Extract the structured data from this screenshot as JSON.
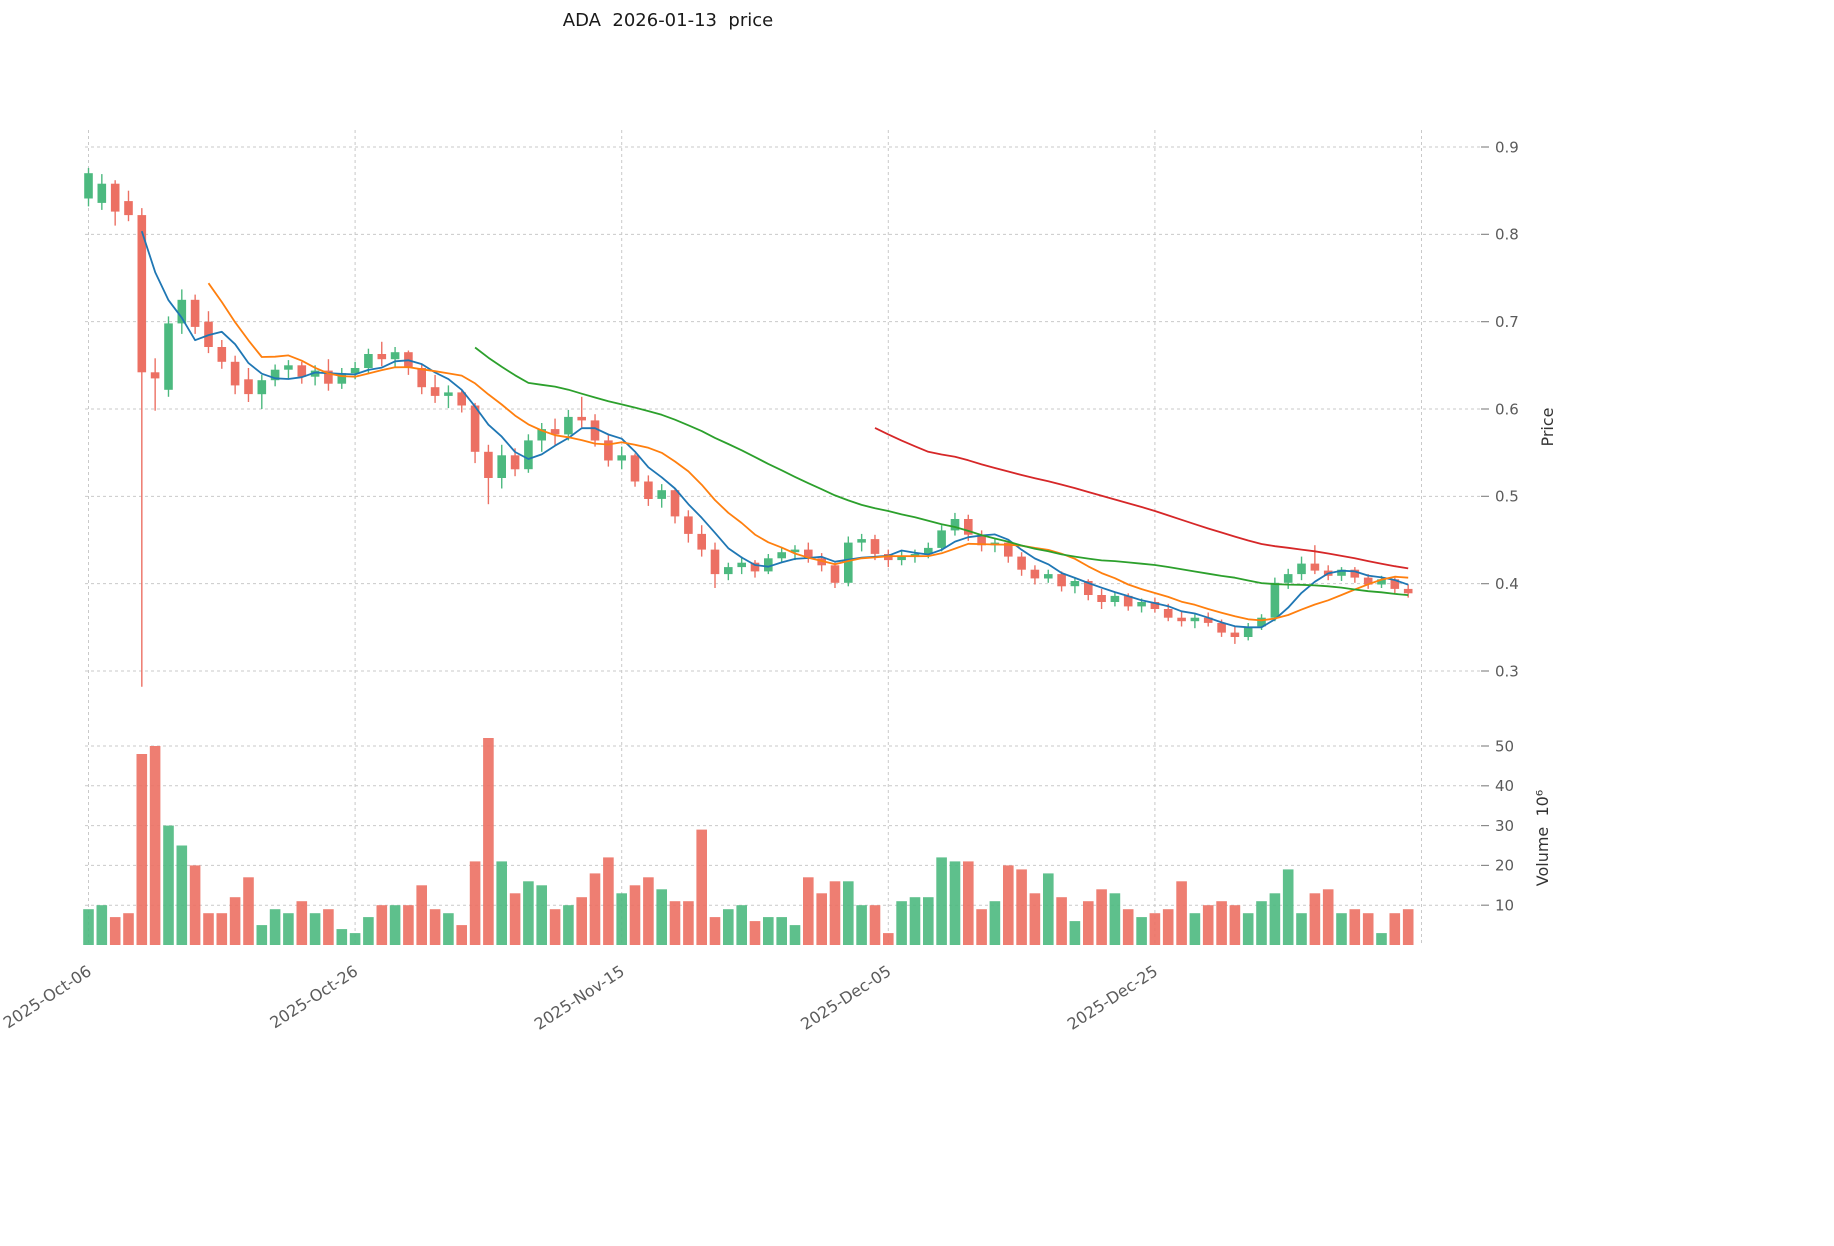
{
  "chart_data": {
    "type": "candlestick",
    "title": "ADA  2026-01-13  price",
    "ylabel_price": "Price",
    "ylabel_volume": "Volume  10⁶",
    "price_ticks": [
      0.3,
      0.4,
      0.5,
      0.6,
      0.7,
      0.8,
      0.9
    ],
    "volume_ticks": [
      10,
      20,
      30,
      40,
      50
    ],
    "price_axis_range": [
      0.26,
      0.93
    ],
    "volume_axis_range": [
      0,
      50
    ],
    "grid": "dashed",
    "legend_position": "none",
    "x_ticks": [
      {
        "i": 0,
        "label": "2025-Oct-06"
      },
      {
        "i": 20,
        "label": "2025-Oct-26"
      },
      {
        "i": 40,
        "label": "2025-Nov-15"
      },
      {
        "i": 60,
        "label": "2025-Dec-05"
      },
      {
        "i": 80,
        "label": "2025-Dec-25"
      },
      {
        "i": 100,
        "label": ""
      }
    ],
    "moving_averages": [
      {
        "name": "MA5",
        "window": 5,
        "color": "#1f77b4"
      },
      {
        "name": "MA10",
        "window": 10,
        "color": "#ff7f0e"
      },
      {
        "name": "MA30",
        "window": 30,
        "color": "#2ca02c"
      },
      {
        "name": "MA60",
        "window": 60,
        "color": "#d62728"
      }
    ],
    "colors": {
      "up": "#4cb97f",
      "down": "#ec7063",
      "grid": "#c9c9c9",
      "text": "#5b5b5b"
    },
    "volume_unit": 1000000,
    "candles_format": [
      "date",
      "open",
      "high",
      "low",
      "close",
      "volume_millions"
    ],
    "candles": [
      [
        "2025-10-06",
        0.841,
        0.876,
        0.832,
        0.87,
        9
      ],
      [
        "2025-10-07",
        0.836,
        0.869,
        0.828,
        0.858,
        10
      ],
      [
        "2025-10-08",
        0.858,
        0.862,
        0.81,
        0.826,
        7
      ],
      [
        "2025-10-09",
        0.838,
        0.85,
        0.815,
        0.822,
        8
      ],
      [
        "2025-10-10",
        0.822,
        0.83,
        0.282,
        0.642,
        48
      ],
      [
        "2025-10-11",
        0.642,
        0.658,
        0.598,
        0.635,
        50
      ],
      [
        "2025-10-12",
        0.622,
        0.706,
        0.614,
        0.698,
        30
      ],
      [
        "2025-10-13",
        0.698,
        0.737,
        0.686,
        0.725,
        25
      ],
      [
        "2025-10-14",
        0.725,
        0.731,
        0.686,
        0.694,
        20
      ],
      [
        "2025-10-15",
        0.7,
        0.712,
        0.664,
        0.671,
        8
      ],
      [
        "2025-10-16",
        0.671,
        0.679,
        0.646,
        0.654,
        8
      ],
      [
        "2025-10-17",
        0.654,
        0.661,
        0.617,
        0.627,
        12
      ],
      [
        "2025-10-18",
        0.634,
        0.647,
        0.608,
        0.617,
        17
      ],
      [
        "2025-10-19",
        0.617,
        0.639,
        0.6,
        0.633,
        5
      ],
      [
        "2025-10-20",
        0.633,
        0.651,
        0.626,
        0.645,
        9
      ],
      [
        "2025-10-21",
        0.645,
        0.656,
        0.635,
        0.65,
        8
      ],
      [
        "2025-10-22",
        0.65,
        0.654,
        0.629,
        0.637,
        11
      ],
      [
        "2025-10-23",
        0.637,
        0.65,
        0.627,
        0.644,
        8
      ],
      [
        "2025-10-24",
        0.644,
        0.657,
        0.621,
        0.629,
        9
      ],
      [
        "2025-10-25",
        0.629,
        0.647,
        0.623,
        0.641,
        4
      ],
      [
        "2025-10-26",
        0.641,
        0.654,
        0.634,
        0.647,
        3
      ],
      [
        "2025-10-27",
        0.647,
        0.669,
        0.641,
        0.663,
        7
      ],
      [
        "2025-10-28",
        0.663,
        0.677,
        0.649,
        0.657,
        10
      ],
      [
        "2025-10-29",
        0.657,
        0.671,
        0.647,
        0.665,
        10
      ],
      [
        "2025-10-30",
        0.665,
        0.667,
        0.639,
        0.647,
        10
      ],
      [
        "2025-10-31",
        0.647,
        0.651,
        0.617,
        0.625,
        15
      ],
      [
        "2025-11-01",
        0.625,
        0.639,
        0.607,
        0.615,
        9
      ],
      [
        "2025-11-02",
        0.615,
        0.627,
        0.601,
        0.619,
        8
      ],
      [
        "2025-11-03",
        0.619,
        0.621,
        0.596,
        0.604,
        5
      ],
      [
        "2025-11-04",
        0.604,
        0.607,
        0.538,
        0.551,
        21
      ],
      [
        "2025-11-05",
        0.551,
        0.559,
        0.491,
        0.521,
        52
      ],
      [
        "2025-11-06",
        0.521,
        0.559,
        0.509,
        0.547,
        21
      ],
      [
        "2025-11-07",
        0.547,
        0.555,
        0.523,
        0.531,
        13
      ],
      [
        "2025-11-08",
        0.531,
        0.571,
        0.527,
        0.564,
        16
      ],
      [
        "2025-11-09",
        0.564,
        0.584,
        0.551,
        0.577,
        15
      ],
      [
        "2025-11-10",
        0.577,
        0.589,
        0.559,
        0.571,
        9
      ],
      [
        "2025-11-11",
        0.571,
        0.599,
        0.564,
        0.591,
        10
      ],
      [
        "2025-11-12",
        0.591,
        0.614,
        0.579,
        0.587,
        12
      ],
      [
        "2025-11-13",
        0.587,
        0.594,
        0.557,
        0.564,
        18
      ],
      [
        "2025-11-14",
        0.564,
        0.571,
        0.534,
        0.541,
        22
      ],
      [
        "2025-11-15",
        0.541,
        0.557,
        0.531,
        0.547,
        13
      ],
      [
        "2025-11-16",
        0.547,
        0.549,
        0.511,
        0.517,
        15
      ],
      [
        "2025-11-17",
        0.517,
        0.524,
        0.489,
        0.497,
        17
      ],
      [
        "2025-11-18",
        0.497,
        0.514,
        0.487,
        0.507,
        14
      ],
      [
        "2025-11-19",
        0.507,
        0.509,
        0.469,
        0.477,
        11
      ],
      [
        "2025-11-20",
        0.477,
        0.484,
        0.447,
        0.457,
        11
      ],
      [
        "2025-11-21",
        0.457,
        0.467,
        0.431,
        0.439,
        29
      ],
      [
        "2025-11-22",
        0.439,
        0.447,
        0.395,
        0.411,
        7
      ],
      [
        "2025-11-23",
        0.411,
        0.424,
        0.404,
        0.419,
        9
      ],
      [
        "2025-11-24",
        0.419,
        0.431,
        0.411,
        0.424,
        10
      ],
      [
        "2025-11-25",
        0.424,
        0.427,
        0.407,
        0.414,
        6
      ],
      [
        "2025-11-26",
        0.414,
        0.434,
        0.411,
        0.429,
        7
      ],
      [
        "2025-11-27",
        0.429,
        0.441,
        0.424,
        0.436,
        7
      ],
      [
        "2025-11-28",
        0.436,
        0.444,
        0.427,
        0.439,
        5
      ],
      [
        "2025-11-29",
        0.439,
        0.447,
        0.424,
        0.429,
        17
      ],
      [
        "2025-11-30",
        0.429,
        0.435,
        0.414,
        0.421,
        13
      ],
      [
        "2025-12-01",
        0.421,
        0.424,
        0.395,
        0.401,
        16
      ],
      [
        "2025-12-02",
        0.401,
        0.454,
        0.397,
        0.447,
        16
      ],
      [
        "2025-12-03",
        0.447,
        0.457,
        0.437,
        0.451,
        10
      ],
      [
        "2025-12-04",
        0.451,
        0.456,
        0.427,
        0.434,
        10
      ],
      [
        "2025-12-05",
        0.434,
        0.439,
        0.419,
        0.427,
        3
      ],
      [
        "2025-12-06",
        0.427,
        0.437,
        0.421,
        0.431,
        11
      ],
      [
        "2025-12-07",
        0.431,
        0.439,
        0.424,
        0.434,
        12
      ],
      [
        "2025-12-08",
        0.434,
        0.447,
        0.429,
        0.441,
        12
      ],
      [
        "2025-12-09",
        0.441,
        0.467,
        0.437,
        0.461,
        22
      ],
      [
        "2025-12-10",
        0.461,
        0.481,
        0.455,
        0.474,
        21
      ],
      [
        "2025-12-11",
        0.474,
        0.479,
        0.449,
        0.456,
        21
      ],
      [
        "2025-12-12",
        0.456,
        0.461,
        0.437,
        0.444,
        9
      ],
      [
        "2025-12-13",
        0.444,
        0.451,
        0.436,
        0.447,
        11
      ],
      [
        "2025-12-14",
        0.447,
        0.449,
        0.424,
        0.431,
        20
      ],
      [
        "2025-12-15",
        0.431,
        0.436,
        0.409,
        0.416,
        19
      ],
      [
        "2025-12-16",
        0.416,
        0.421,
        0.399,
        0.406,
        13
      ],
      [
        "2025-12-17",
        0.406,
        0.416,
        0.401,
        0.411,
        18
      ],
      [
        "2025-12-18",
        0.411,
        0.414,
        0.391,
        0.397,
        12
      ],
      [
        "2025-12-19",
        0.397,
        0.407,
        0.389,
        0.403,
        6
      ],
      [
        "2025-12-20",
        0.403,
        0.405,
        0.381,
        0.387,
        11
      ],
      [
        "2025-12-21",
        0.387,
        0.394,
        0.371,
        0.379,
        14
      ],
      [
        "2025-12-22",
        0.379,
        0.391,
        0.374,
        0.386,
        13
      ],
      [
        "2025-12-23",
        0.386,
        0.389,
        0.369,
        0.374,
        9
      ],
      [
        "2025-12-24",
        0.374,
        0.383,
        0.367,
        0.379,
        7
      ],
      [
        "2025-12-25",
        0.379,
        0.384,
        0.367,
        0.371,
        8
      ],
      [
        "2025-12-26",
        0.371,
        0.377,
        0.357,
        0.361,
        9
      ],
      [
        "2025-12-27",
        0.361,
        0.369,
        0.351,
        0.357,
        16
      ],
      [
        "2025-12-28",
        0.357,
        0.365,
        0.349,
        0.361,
        8
      ],
      [
        "2025-12-29",
        0.361,
        0.367,
        0.351,
        0.355,
        10
      ],
      [
        "2025-12-30",
        0.355,
        0.359,
        0.339,
        0.344,
        11
      ],
      [
        "2025-12-31",
        0.344,
        0.351,
        0.331,
        0.339,
        10
      ],
      [
        "2026-01-01",
        0.339,
        0.355,
        0.335,
        0.351,
        8
      ],
      [
        "2026-01-02",
        0.351,
        0.365,
        0.347,
        0.361,
        11
      ],
      [
        "2026-01-03",
        0.361,
        0.407,
        0.357,
        0.401,
        13
      ],
      [
        "2026-01-04",
        0.401,
        0.417,
        0.394,
        0.411,
        19
      ],
      [
        "2026-01-05",
        0.411,
        0.431,
        0.404,
        0.423,
        8
      ],
      [
        "2026-01-06",
        0.423,
        0.444,
        0.411,
        0.415,
        13
      ],
      [
        "2026-01-07",
        0.415,
        0.421,
        0.404,
        0.409,
        14
      ],
      [
        "2026-01-08",
        0.409,
        0.419,
        0.403,
        0.416,
        8
      ],
      [
        "2026-01-09",
        0.416,
        0.419,
        0.401,
        0.407,
        9
      ],
      [
        "2026-01-10",
        0.407,
        0.411,
        0.394,
        0.399,
        8
      ],
      [
        "2026-01-11",
        0.399,
        0.409,
        0.395,
        0.405,
        3
      ],
      [
        "2026-01-12",
        0.405,
        0.407,
        0.389,
        0.394,
        8
      ],
      [
        "2026-01-13",
        0.394,
        0.399,
        0.384,
        0.389,
        9
      ]
    ]
  }
}
